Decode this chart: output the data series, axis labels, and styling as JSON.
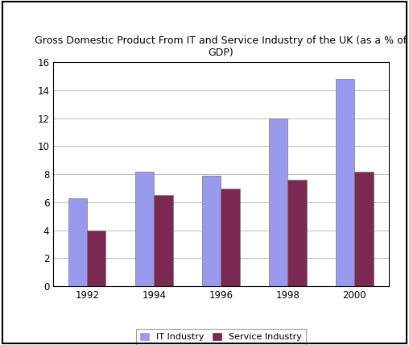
{
  "title": "Gross Domestic Product From IT and Service Industry of the UK (as a % of\nGDP)",
  "categories": [
    "1992",
    "1994",
    "1996",
    "1998",
    "2000"
  ],
  "it_industry": [
    6.3,
    8.2,
    7.9,
    12.0,
    14.8
  ],
  "service_industry": [
    4.0,
    6.5,
    7.0,
    7.6,
    8.2
  ],
  "it_color": "#9999ee",
  "service_color": "#7b2952",
  "ylim": [
    0,
    16
  ],
  "yticks": [
    0,
    2,
    4,
    6,
    8,
    10,
    12,
    14,
    16
  ],
  "legend_labels": [
    "IT Industry",
    "Service Industry"
  ],
  "bar_width": 0.28,
  "background_color": "#ffffff",
  "grid_color": "#bbbbbb",
  "title_fontsize": 9,
  "outer_border_color": "#000000"
}
